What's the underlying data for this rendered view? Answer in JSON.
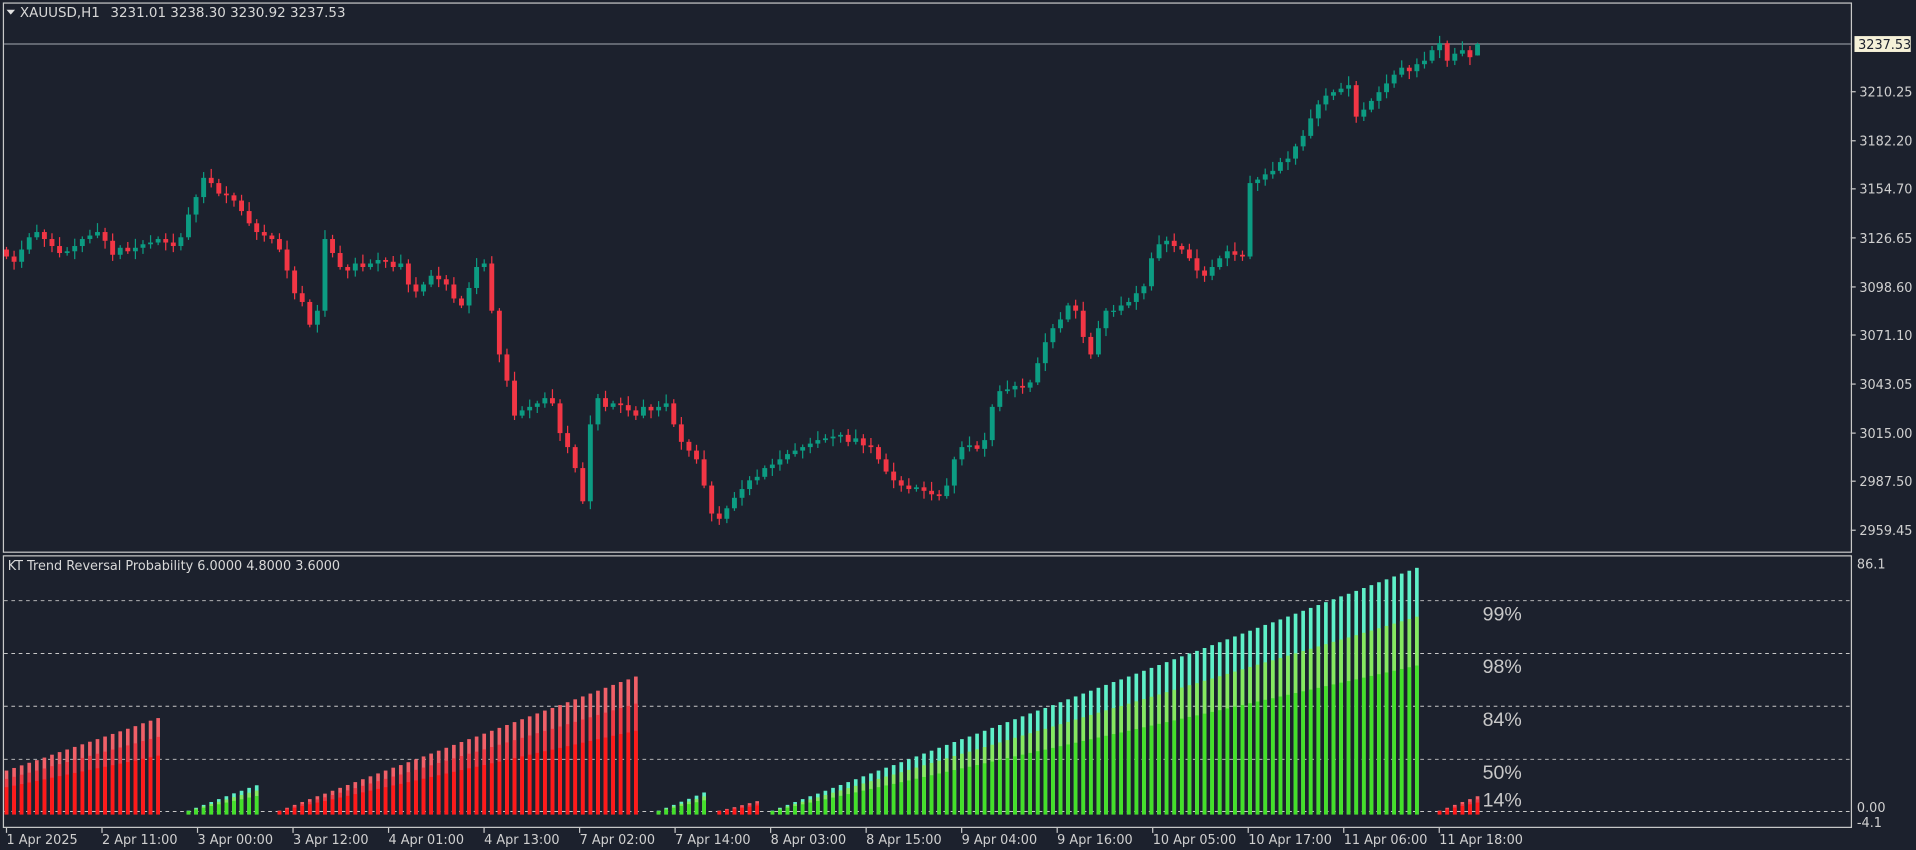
{
  "header": {
    "symbol": "XAUUSD,H1",
    "ohlc": "3231.01 3238.30 3230.92 3237.53",
    "menu_icon": "triangle-down-icon"
  },
  "colors": {
    "background": "#1c212d",
    "frame": "#c8c8c8",
    "bullish": "#0c9c82",
    "bearish": "#f23645",
    "osc_cyan": "#5ef0c8",
    "osc_light_green": "#86e860",
    "osc_green": "#44e02a",
    "osc_red_light": "#f06068",
    "osc_red": "#ff1a1a"
  },
  "price_axis": {
    "labels": [
      "3210.25",
      "3182.20",
      "3154.70",
      "3126.65",
      "3098.60",
      "3071.10",
      "3043.05",
      "3015.00",
      "2987.50",
      "2959.45"
    ],
    "current_price": "3237.53"
  },
  "time_axis": {
    "labels": [
      "1 Apr 2025",
      "2 Apr 11:00",
      "3 Apr 00:00",
      "3 Apr 12:00",
      "4 Apr 01:00",
      "4 Apr 13:00",
      "7 Apr 02:00",
      "7 Apr 14:00",
      "8 Apr 03:00",
      "8 Apr 15:00",
      "9 Apr 04:00",
      "9 Apr 16:00",
      "10 Apr 05:00",
      "10 Apr 17:00",
      "11 Apr 06:00",
      "11 Apr 18:00"
    ]
  },
  "chart_data": [
    {
      "type": "candlestick",
      "symbol": "XAUUSD",
      "timeframe": "H1",
      "ylim": [
        2950,
        3260
      ],
      "last_bar": {
        "open": 3231.01,
        "high": 3238.3,
        "low": 3230.92,
        "close": 3237.53
      },
      "closes": [
        3116,
        3113,
        3120,
        3127,
        3130,
        3126,
        3122,
        3118,
        3119,
        3122,
        3126,
        3128,
        3130,
        3125,
        3117,
        3121,
        3119,
        3121,
        3123,
        3124,
        3126,
        3124,
        3122,
        3127,
        3140,
        3150,
        3161,
        3158,
        3152,
        3151,
        3148,
        3142,
        3135,
        3130,
        3128,
        3126,
        3120,
        3108,
        3095,
        3090,
        3077,
        3085,
        3126,
        3118,
        3110,
        3108,
        3112,
        3110,
        3112,
        3114,
        3113,
        3110,
        3112,
        3100,
        3096,
        3100,
        3105,
        3103,
        3100,
        3092,
        3088,
        3098,
        3110,
        3112,
        3085,
        3060,
        3045,
        3025,
        3028,
        3030,
        3032,
        3035,
        3032,
        3015,
        3007,
        2995,
        2976,
        3020,
        3035,
        3030,
        3032,
        3031,
        3028,
        3025,
        3030,
        3028,
        3030,
        3032,
        3020,
        3010,
        3005,
        3000,
        2985,
        2969,
        2966,
        2972,
        2978,
        2983,
        2988,
        2990,
        2995,
        2997,
        3000,
        3003,
        3005,
        3007,
        3009,
        3011,
        3012,
        3013,
        3014,
        3010,
        3012,
        3008,
        3007,
        3000,
        2993,
        2988,
        2985,
        2983,
        2984,
        2982,
        2980,
        2979,
        2985,
        3000,
        3007,
        3008,
        3006,
        3011,
        3030,
        3039,
        3040,
        3042,
        3041,
        3044,
        3055,
        3067,
        3075,
        3080,
        3088,
        3085,
        3070,
        3060,
        3075,
        3085,
        3085,
        3088,
        3090,
        3095,
        3099,
        3115,
        3123,
        3125,
        3122,
        3120,
        3115,
        3108,
        3105,
        3110,
        3115,
        3119,
        3117,
        3116,
        3158,
        3160,
        3163,
        3165,
        3170,
        3172,
        3179,
        3185,
        3195,
        3203,
        3208,
        3210,
        3212,
        3214,
        3196,
        3200,
        3205,
        3210,
        3215,
        3220,
        3224,
        3222,
        3226,
        3228,
        3234,
        3238,
        3228,
        3232,
        3234,
        3230,
        3237.53
      ]
    },
    {
      "type": "bar",
      "title": "KT Trend Reversal Probability 6.0000 4.8000 3.6000",
      "ylim": [
        -4.1,
        86.1
      ],
      "axis_labels": [
        "86.1",
        "0.00",
        "-4.1"
      ],
      "levels": [
        {
          "value": 73.3,
          "label": "99%"
        },
        {
          "value": 55.0,
          "label": "98%"
        },
        {
          "value": 36.7,
          "label": "84%"
        },
        {
          "value": 18.3,
          "label": "50%"
        },
        {
          "value": 0.2,
          "label": "14%"
        }
      ],
      "segments": [
        {
          "direction": "bearish",
          "start_bar": 0,
          "values": [
            14.4,
            15.3,
            16.2,
            17.1,
            18.0,
            18.9,
            19.9,
            20.8,
            21.7,
            22.6,
            23.5,
            24.4,
            25.3,
            26.2,
            27.1,
            28.0,
            28.9,
            29.8,
            30.8,
            31.7,
            32.6
          ]
        },
        {
          "direction": "bullish",
          "start_bar": 24,
          "values": [
            0.5,
            1.5,
            2.5,
            3.5,
            4.5,
            5.5,
            6.5,
            7.4,
            8.4,
            9.3
          ]
        },
        {
          "direction": "bearish",
          "start_bar": 36,
          "values": [
            0.5,
            1.5,
            2.5,
            3.5,
            4.5,
            5.5,
            6.4,
            7.4,
            8.4,
            9.4,
            10.4,
            11.4,
            12.4,
            13.4,
            14.4,
            15.4,
            16.3,
            17.3,
            18.3,
            19.3,
            20.3,
            21.3,
            22.3,
            23.3,
            24.3,
            25.3,
            26.2,
            27.2,
            28.2,
            29.2,
            30.2,
            31.2,
            32.2,
            33.2,
            34.2,
            35.2,
            36.1,
            37.1,
            38.1,
            39.1,
            40.1,
            41.1,
            42.1,
            43.1,
            44.1,
            45.1,
            46.0,
            47.0
          ]
        },
        {
          "direction": "bullish",
          "start_bar": 86,
          "values": [
            0.5,
            1.5,
            2.5,
            3.6,
            4.6,
            5.7,
            6.8
          ]
        },
        {
          "direction": "bearish",
          "start_bar": 94,
          "values": [
            0.5,
            1.1,
            1.7,
            2.4,
            3.1,
            3.8
          ]
        },
        {
          "direction": "bullish",
          "start_bar": 101,
          "values": [
            0.5,
            1.5,
            2.5,
            3.5,
            4.5,
            5.5,
            6.4,
            7.4,
            8.4,
            9.4,
            10.4,
            11.4,
            12.4,
            13.4,
            14.4,
            15.4,
            16.3,
            17.3,
            18.3,
            19.3,
            20.3,
            21.3,
            22.3,
            23.3,
            24.3,
            25.3,
            26.2,
            27.2,
            28.2,
            29.2,
            30.2,
            31.2,
            32.2,
            33.2,
            34.2,
            35.2,
            36.1,
            37.1,
            38.1,
            39.1,
            40.1,
            41.1,
            42.1,
            43.1,
            44.1,
            45.1,
            46.0,
            47.0,
            48.0,
            49.0,
            50.0,
            51.0,
            52.0,
            53.0,
            54.0,
            55.0,
            55.9,
            56.9,
            57.9,
            58.9,
            59.9,
            60.9,
            61.9,
            62.9,
            63.9,
            64.9,
            65.8,
            66.8,
            67.8,
            68.8,
            69.8,
            70.8,
            71.8,
            72.8,
            73.8,
            74.8,
            75.7,
            76.7,
            77.7,
            78.7,
            79.7,
            80.7,
            81.7,
            82.7,
            83.7,
            84.7
          ]
        },
        {
          "direction": "bearish",
          "start_bar": 189,
          "values": [
            0.5,
            1.5,
            2.5,
            3.5,
            4.5,
            5.5
          ]
        }
      ]
    }
  ]
}
